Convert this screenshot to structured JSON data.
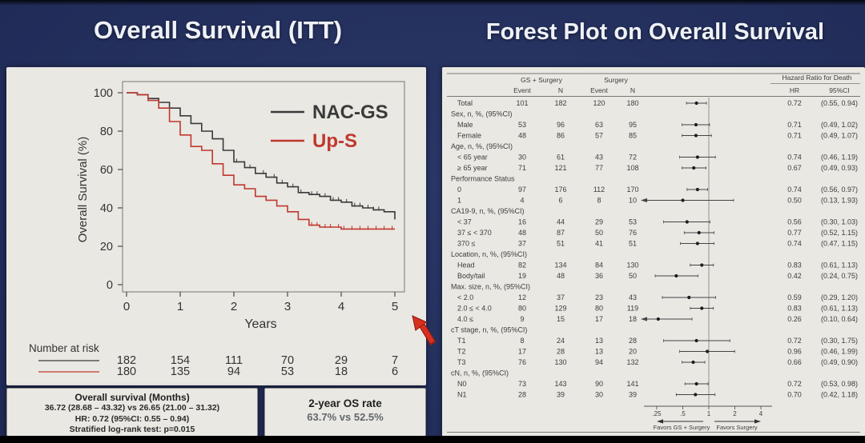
{
  "slide": {
    "left_title": "Overall Survival (ITT)",
    "right_title": "Forest Plot on Overall Survival",
    "colors": {
      "background": "#212c59",
      "panel": "#e9e8e3",
      "nac_gs": "#3a3a3a",
      "up_s": "#c0372e",
      "title_text": "#eef1f8",
      "cursor_red": "#d92f1f"
    }
  },
  "os_box": {
    "title": "Overall survival (Months)",
    "line1": "36.72 (28.68 – 43.32) vs 26.65 (21.00 – 31.32)",
    "line2": "HR: 0.72 (95%CI: 0.55 – 0.94)",
    "line3": "Stratified log-rank test: p=0.015"
  },
  "rate_box": {
    "title": "2-year OS rate",
    "value": "63.7% vs 52.5%"
  },
  "chart_data": [
    {
      "type": "line",
      "subtype": "kaplan-meier-step",
      "title": "Overall Survival (ITT)",
      "xlabel": "Years",
      "ylabel": "Overall Survival (%)",
      "xlim": [
        0,
        5
      ],
      "ylim": [
        0,
        100
      ],
      "xticks": [
        0,
        1,
        2,
        3,
        4,
        5
      ],
      "yticks": [
        100,
        80,
        60,
        40,
        20,
        0
      ],
      "grid": false,
      "legend_position": "top-right",
      "series": [
        {
          "name": "NAC-GS",
          "color": "#3a3a3a",
          "points": [
            [
              0,
              100
            ],
            [
              0.2,
              99
            ],
            [
              0.4,
              97
            ],
            [
              0.6,
              95
            ],
            [
              0.8,
              92
            ],
            [
              1.0,
              88
            ],
            [
              1.2,
              84
            ],
            [
              1.4,
              80
            ],
            [
              1.6,
              76
            ],
            [
              1.8,
              70
            ],
            [
              2.0,
              64
            ],
            [
              2.2,
              61
            ],
            [
              2.4,
              58
            ],
            [
              2.6,
              56
            ],
            [
              2.8,
              53
            ],
            [
              3.0,
              51
            ],
            [
              3.2,
              48
            ],
            [
              3.4,
              47
            ],
            [
              3.6,
              46
            ],
            [
              3.8,
              44
            ],
            [
              4.0,
              43
            ],
            [
              4.2,
              41
            ],
            [
              4.4,
              40
            ],
            [
              4.6,
              39
            ],
            [
              4.8,
              38
            ],
            [
              5.0,
              34
            ]
          ],
          "censor_x": [
            2.05,
            2.3,
            2.55,
            2.75,
            2.9,
            3.1,
            3.25,
            3.45,
            3.55,
            3.7,
            3.85,
            3.95,
            4.1,
            4.25,
            4.35,
            4.5,
            4.6,
            4.7
          ]
        },
        {
          "name": "Up-S",
          "color": "#c0372e",
          "points": [
            [
              0,
              100
            ],
            [
              0.2,
              99
            ],
            [
              0.4,
              96
            ],
            [
              0.6,
              92
            ],
            [
              0.8,
              85
            ],
            [
              1.0,
              78
            ],
            [
              1.2,
              72
            ],
            [
              1.4,
              70
            ],
            [
              1.6,
              63
            ],
            [
              1.8,
              57
            ],
            [
              2.0,
              52
            ],
            [
              2.2,
              50
            ],
            [
              2.4,
              46
            ],
            [
              2.6,
              44
            ],
            [
              2.8,
              41
            ],
            [
              3.0,
              38
            ],
            [
              3.2,
              34
            ],
            [
              3.4,
              31
            ],
            [
              3.6,
              30
            ],
            [
              3.8,
              30
            ],
            [
              4.0,
              29
            ],
            [
              4.5,
              29
            ],
            [
              5.0,
              29
            ]
          ],
          "censor_x": [
            3.45,
            3.55,
            3.7,
            3.8,
            3.95,
            4.05,
            4.2,
            4.35,
            4.5,
            4.65,
            4.8,
            4.95
          ]
        }
      ],
      "number_at_risk": {
        "label": "Number at risk",
        "rows": [
          {
            "series": "NAC-GS",
            "color": "#3a3a3a",
            "values": [
              182,
              154,
              111,
              70,
              29,
              7
            ]
          },
          {
            "series": "Up-S",
            "color": "#c0372e",
            "values": [
              180,
              135,
              94,
              53,
              18,
              6
            ]
          }
        ]
      }
    },
    {
      "type": "forest",
      "title": "Forest Plot on Overall Survival",
      "col_headers": {
        "group1": "GS + Surgery",
        "group2": "Surgery",
        "group3": "Hazard Ratio for Death",
        "sub": [
          "Event",
          "N",
          "Event",
          "N",
          "HR",
          "95%CI"
        ]
      },
      "axis": {
        "scale": "log",
        "ticks": [
          0.25,
          0.5,
          1,
          2,
          4
        ],
        "tick_labels": [
          ".25",
          ".5",
          "1",
          "2",
          "4"
        ],
        "favors_left": "Favors GS + Surgery",
        "favors_right": "Favors Surgery"
      },
      "rows": [
        {
          "label": "Total",
          "event1": 101,
          "n1": 182,
          "event2": 120,
          "n2": 180,
          "hr": 0.72,
          "ci": [
            0.55,
            0.94
          ]
        },
        {
          "label": "Sex, n, %, (95%CI)",
          "group": true
        },
        {
          "label": "Male",
          "event1": 53,
          "n1": 96,
          "event2": 63,
          "n2": 95,
          "hr": 0.71,
          "ci": [
            0.49,
            1.02
          ]
        },
        {
          "label": "Female",
          "event1": 48,
          "n1": 86,
          "event2": 57,
          "n2": 85,
          "hr": 0.71,
          "ci": [
            0.49,
            1.07
          ]
        },
        {
          "label": "Age, n, %, (95%CI)",
          "group": true
        },
        {
          "label": "< 65 year",
          "event1": 30,
          "n1": 61,
          "event2": 43,
          "n2": 72,
          "hr": 0.74,
          "ci": [
            0.46,
            1.19
          ]
        },
        {
          "label": "≥ 65 year",
          "event1": 71,
          "n1": 121,
          "event2": 77,
          "n2": 108,
          "hr": 0.67,
          "ci": [
            0.49,
            0.93
          ]
        },
        {
          "label": "Performance Status",
          "group": true
        },
        {
          "label": "0",
          "event1": 97,
          "n1": 176,
          "event2": 112,
          "n2": 170,
          "hr": 0.74,
          "ci": [
            0.56,
            0.97
          ]
        },
        {
          "label": "1",
          "event1": 4,
          "n1": 6,
          "event2": 8,
          "n2": 10,
          "hr": 0.5,
          "ci": [
            0.13,
            1.93
          ]
        },
        {
          "label": "CA19-9, n, %, (95%CI)",
          "group": true
        },
        {
          "label": "< 37",
          "event1": 16,
          "n1": 44,
          "event2": 29,
          "n2": 53,
          "hr": 0.56,
          "ci": [
            0.3,
            1.03
          ]
        },
        {
          "label": "37 ≤ < 370",
          "event1": 48,
          "n1": 87,
          "event2": 50,
          "n2": 76,
          "hr": 0.77,
          "ci": [
            0.52,
            1.15
          ]
        },
        {
          "label": "370 ≤",
          "event1": 37,
          "n1": 51,
          "event2": 41,
          "n2": 51,
          "hr": 0.74,
          "ci": [
            0.47,
            1.15
          ]
        },
        {
          "label": "Location, n, %, (95%CI)",
          "group": true
        },
        {
          "label": "Head",
          "event1": 82,
          "n1": 134,
          "event2": 84,
          "n2": 130,
          "hr": 0.83,
          "ci": [
            0.61,
            1.13
          ]
        },
        {
          "label": "Body/tail",
          "event1": 19,
          "n1": 48,
          "event2": 36,
          "n2": 50,
          "hr": 0.42,
          "ci": [
            0.24,
            0.75
          ]
        },
        {
          "label": "Max. size, n, %, (95%CI)",
          "group": true
        },
        {
          "label": "< 2.0",
          "event1": 12,
          "n1": 37,
          "event2": 23,
          "n2": 43,
          "hr": 0.59,
          "ci": [
            0.29,
            1.2
          ]
        },
        {
          "label": "2.0 ≤ < 4.0",
          "event1": 80,
          "n1": 129,
          "event2": 80,
          "n2": 119,
          "hr": 0.83,
          "ci": [
            0.61,
            1.13
          ]
        },
        {
          "label": "4.0 ≤",
          "event1": 9,
          "n1": 15,
          "event2": 17,
          "n2": 18,
          "hr": 0.26,
          "ci": [
            0.1,
            0.64
          ]
        },
        {
          "label": "cT stage, n, %, (95%CI)",
          "group": true
        },
        {
          "label": "T1",
          "event1": 8,
          "n1": 24,
          "event2": 13,
          "n2": 28,
          "hr": 0.72,
          "ci": [
            0.3,
            1.75
          ]
        },
        {
          "label": "T2",
          "event1": 17,
          "n1": 28,
          "event2": 13,
          "n2": 20,
          "hr": 0.96,
          "ci": [
            0.46,
            1.99
          ]
        },
        {
          "label": "T3",
          "event1": 76,
          "n1": 130,
          "event2": 94,
          "n2": 132,
          "hr": 0.66,
          "ci": [
            0.49,
            0.9
          ]
        },
        {
          "label": "cN, n, %, (95%CI)",
          "group": true
        },
        {
          "label": "N0",
          "event1": 73,
          "n1": 143,
          "event2": 90,
          "n2": 141,
          "hr": 0.72,
          "ci": [
            0.53,
            0.98
          ]
        },
        {
          "label": "N1",
          "event1": 28,
          "n1": 39,
          "event2": 30,
          "n2": 39,
          "hr": 0.7,
          "ci": [
            0.42,
            1.18
          ]
        }
      ]
    }
  ]
}
